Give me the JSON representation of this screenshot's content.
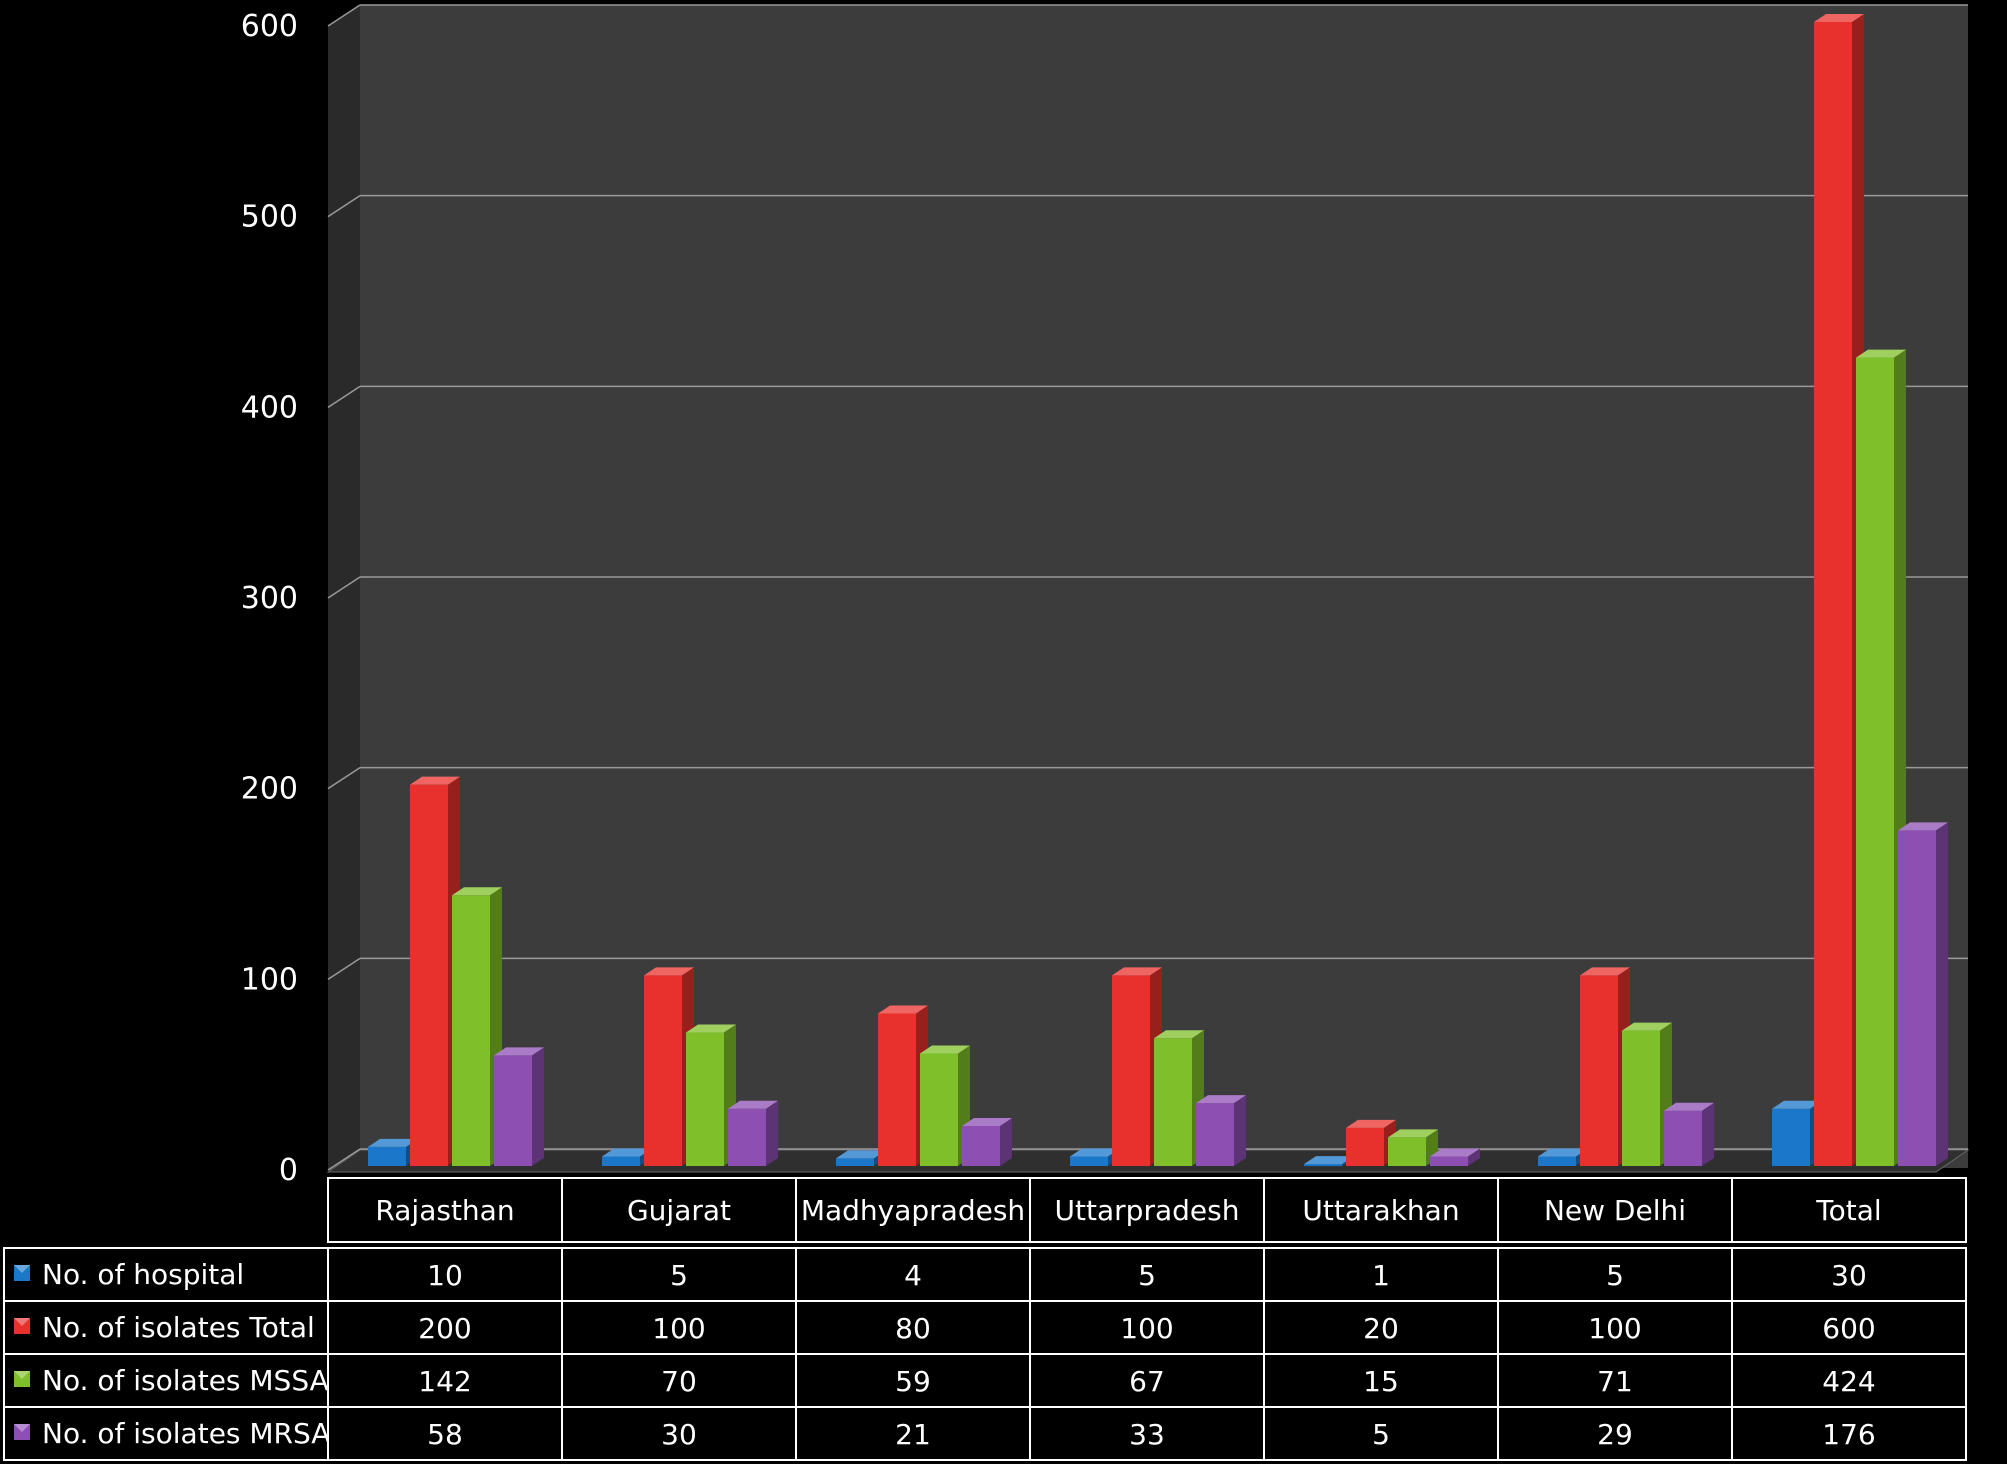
{
  "chart_data": {
    "type": "bar",
    "categories": [
      "Rajasthan",
      "Gujarat",
      "Madhyapradesh",
      "Uttarpradesh",
      "Uttarakhan",
      "New Delhi",
      "Total"
    ],
    "series": [
      {
        "name": "No. of hospital",
        "values": [
          10,
          5,
          4,
          5,
          1,
          5,
          30
        ],
        "color": "#1b77c9"
      },
      {
        "name": "No. of isolates Total",
        "values": [
          200,
          100,
          80,
          100,
          20,
          100,
          600
        ],
        "color": "#e8312d"
      },
      {
        "name": "No. of isolates MSSA",
        "values": [
          142,
          70,
          59,
          67,
          15,
          71,
          424
        ],
        "color": "#7fbf2a"
      },
      {
        "name": "No. of isolates MRSA",
        "values": [
          58,
          30,
          21,
          33,
          5,
          29,
          176
        ],
        "color": "#8e4fb3"
      }
    ],
    "table_values": [
      [
        "10",
        "5",
        "4",
        "5",
        "1",
        "5",
        "30"
      ],
      [
        "200",
        "100",
        "80",
        "100",
        "20",
        "100",
        "600"
      ],
      [
        "142",
        "70",
        "59",
        "67",
        "15",
        "71",
        "424"
      ],
      [
        "58",
        "30",
        "21",
        "33",
        "5",
        "29",
        "176"
      ]
    ],
    "y_ticks": [
      "0",
      "100",
      "200",
      "300",
      "400",
      "500",
      "600"
    ],
    "ylim": [
      0,
      600
    ],
    "grid": true,
    "legend": "data-table",
    "style": "3d-clustered-column"
  }
}
